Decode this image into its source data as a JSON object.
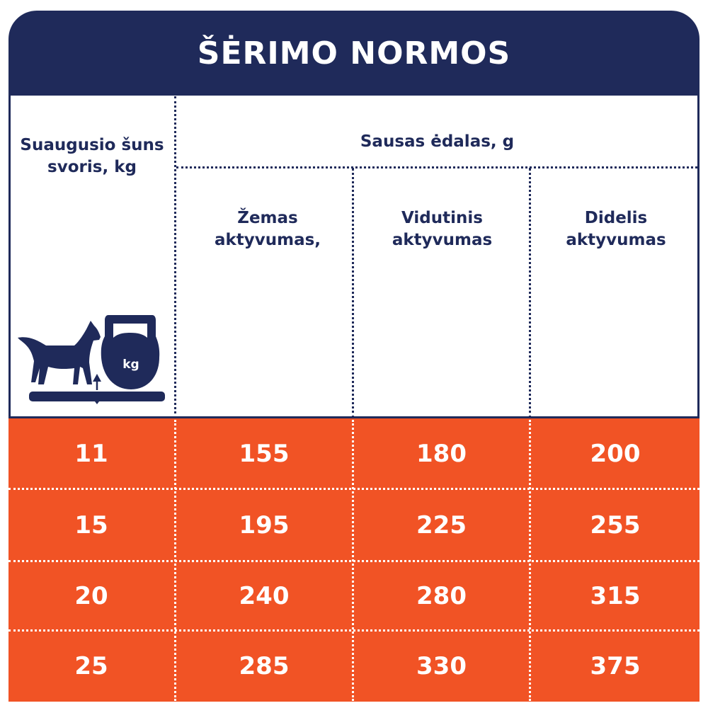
{
  "title": "ŠĖRIMO NORMOS",
  "colors": {
    "navy": "#1f2a5a",
    "orange": "#f15325"
  },
  "header": {
    "weight_col": "Suaugusio šuns svoris, kg",
    "food_group": "Sausas ėdalas, g",
    "activity_cols": [
      "Žemas aktyvumas,",
      "Vidutinis aktyvumas",
      "Didelis aktyvumas"
    ]
  },
  "icon": {
    "name": "dog-on-scale-with-kettlebell-icon",
    "kettlebell_label": "kg"
  },
  "rows": [
    [
      "11",
      "155",
      "180",
      "200"
    ],
    [
      "15",
      "195",
      "225",
      "255"
    ],
    [
      "20",
      "240",
      "280",
      "315"
    ],
    [
      "25",
      "285",
      "330",
      "375"
    ]
  ]
}
